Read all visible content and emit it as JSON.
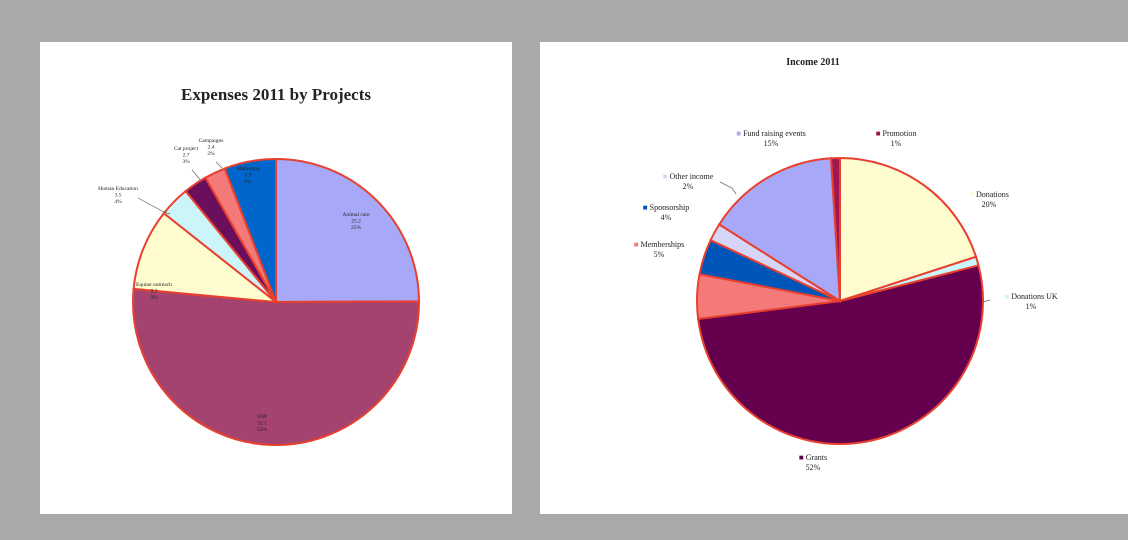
{
  "charts": [
    {
      "type": "pie",
      "title": "Expenses 2011 by Projects",
      "slices": [
        {
          "name": "Animal care",
          "value": 25.2,
          "percent": "25%",
          "color": "#a8a8f8",
          "label_lines": [
            "Animal care",
            "25.2",
            "25%"
          ]
        },
        {
          "name": "SNP",
          "value": 52.1,
          "percent": "52%",
          "color": "#a4436f",
          "label_lines": [
            "SNP",
            "52.1",
            "52%"
          ]
        },
        {
          "name": "Equine outreach",
          "value": 9.3,
          "percent": "9%",
          "color": "#fffdd0",
          "label_lines": [
            "Equine outreach",
            "9.3",
            "9%"
          ]
        },
        {
          "name": "Human Education",
          "value": 3.5,
          "percent": "4%",
          "color": "#ccf5fa",
          "label_lines": [
            "Human Education",
            "3.5",
            "4%"
          ]
        },
        {
          "name": "Cat project",
          "value": 2.7,
          "percent": "3%",
          "color": "#6b0f5c",
          "label_lines": [
            "Cat project",
            "2.7",
            "3%"
          ]
        },
        {
          "name": "Campaigns",
          "value": 2.4,
          "percent": "2%",
          "color": "#f47a7a",
          "label_lines": [
            "Campaigns",
            "2.4",
            "2%"
          ]
        },
        {
          "name": "Marketing",
          "value": 5.9,
          "percent": "6%",
          "color": "#0066cc",
          "label_lines": [
            "Marketing",
            "5.9",
            "6%"
          ]
        }
      ],
      "border_color": "#e8402f"
    },
    {
      "type": "pie",
      "title": "Income 2011",
      "slices": [
        {
          "name": "Donations",
          "value": 20,
          "percent": "20%",
          "color": "#fffdd0",
          "label_lines": [
            "Donations",
            "20%"
          ]
        },
        {
          "name": "Donations UK",
          "value": 1,
          "percent": "1%",
          "color": "#ccf5fa",
          "label_lines": [
            "Donations UK",
            "1%"
          ]
        },
        {
          "name": "Grants",
          "value": 52,
          "percent": "52%",
          "color": "#65004f",
          "label_lines": [
            "Grants",
            "52%"
          ]
        },
        {
          "name": "Memberships",
          "value": 5,
          "percent": "5%",
          "color": "#f47a7a",
          "label_lines": [
            "Memberships",
            "5%"
          ]
        },
        {
          "name": "Sponsorship",
          "value": 4,
          "percent": "4%",
          "color": "#0055b8",
          "label_lines": [
            "Sponsorship",
            "4%"
          ]
        },
        {
          "name": "Other income",
          "value": 2,
          "percent": "2%",
          "color": "#d6d4f7",
          "label_lines": [
            "Other income",
            "2%"
          ]
        },
        {
          "name": "Fund raising events",
          "value": 15,
          "percent": "15%",
          "color": "#a8a8f8",
          "label_lines": [
            "Fund raising events",
            "15%"
          ]
        },
        {
          "name": "Promotion",
          "value": 1,
          "percent": "1%",
          "color": "#a01650",
          "label_lines": [
            "Promotion",
            "1%"
          ]
        }
      ],
      "border_color": "#e8402f"
    }
  ]
}
